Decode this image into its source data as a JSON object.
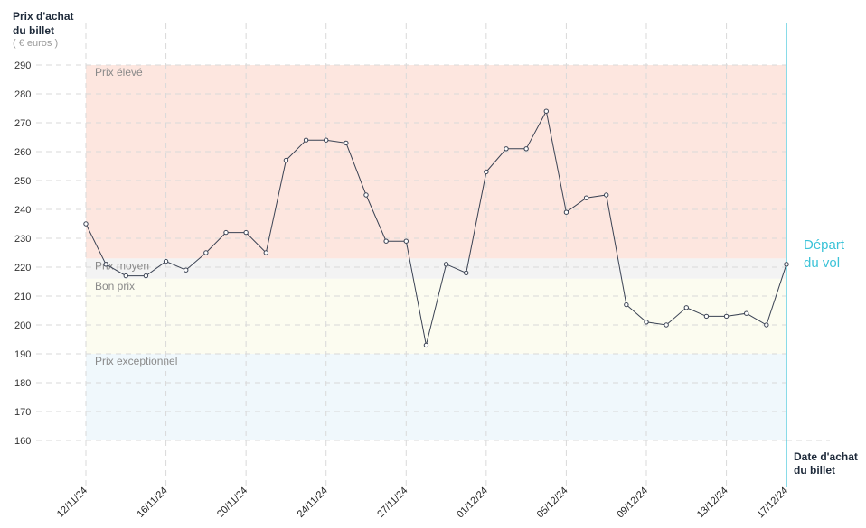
{
  "chart_data": {
    "type": "line",
    "ylabel_lines": [
      "Prix d'achat",
      "du billet"
    ],
    "yunit": "( € euros )",
    "xlabel_lines": [
      "Date d'achat",
      "du billet"
    ],
    "ylim": [
      160,
      290
    ],
    "yticks": [
      160,
      170,
      180,
      190,
      200,
      210,
      220,
      230,
      240,
      250,
      260,
      270,
      280,
      290
    ],
    "xticks": [
      "12/11/24",
      "16/11/24",
      "20/11/24",
      "24/11/24",
      "27/11/24",
      "01/12/24",
      "05/12/24",
      "09/12/24",
      "13/12/24",
      "17/12/24"
    ],
    "bands": [
      {
        "label": "Prix élevé",
        "from": 223,
        "to": 290,
        "color": "#fde6df"
      },
      {
        "label": "Prix moyen",
        "from": 216,
        "to": 223,
        "color": "#f3f3f3"
      },
      {
        "label": "Bon prix",
        "from": 190,
        "to": 216,
        "color": "#fcfcf0"
      },
      {
        "label": "Prix exceptionnel",
        "from": 160,
        "to": 190,
        "color": "#f0f8fc"
      }
    ],
    "departure": {
      "label_lines": [
        "Départ",
        "du vol"
      ],
      "color": "#3bc3d8"
    },
    "series": [
      {
        "color": "#3a4253",
        "values": [
          235,
          221,
          217,
          217,
          222,
          219,
          225,
          232,
          232,
          225,
          257,
          264,
          264,
          263,
          245,
          229,
          229,
          193,
          221,
          218,
          253,
          261,
          261,
          274,
          239,
          244,
          245,
          207,
          201,
          200,
          206,
          203,
          203,
          204,
          200,
          221
        ]
      }
    ]
  }
}
